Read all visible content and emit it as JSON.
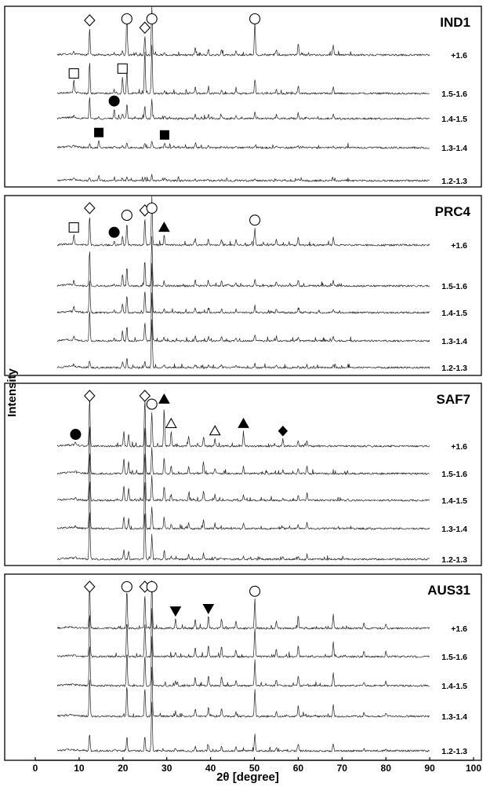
{
  "chart_data": {
    "type": "line",
    "xlabel": "2θ [degree]",
    "ylabel": "Intensity",
    "xlim": [
      0,
      100
    ],
    "x_ticks": [
      0,
      10,
      20,
      30,
      40,
      50,
      60,
      70,
      80,
      90,
      100
    ],
    "x_data_range": [
      5,
      90
    ],
    "grid": false,
    "panels": [
      {
        "name": "IND1",
        "fractions": [
          "+1.6",
          "1.5-1.6",
          "1.4-1.5",
          "1.3-1.4",
          "1.2-1.3"
        ],
        "peaks": [
          [
            12.4,
            [
              0.55,
              0.65,
              0.45,
              0.08,
              0.05
            ]
          ],
          [
            20.9,
            [
              0.85,
              0.45,
              0.3,
              0.1,
              0.07
            ]
          ],
          [
            25.0,
            [
              0.4,
              0.9,
              0.25,
              0.1,
              0.05
            ]
          ],
          [
            26.6,
            [
              1.0,
              1.0,
              0.4,
              0.15,
              0.12
            ]
          ],
          [
            8.8,
            [
              0.05,
              0.25,
              0.05,
              0.04,
              0.02
            ]
          ],
          [
            19.9,
            [
              0.1,
              0.35,
              0.1,
              0.05,
              0.03
            ]
          ],
          [
            18.0,
            [
              0.05,
              0.08,
              0.2,
              0.03,
              0.02
            ]
          ],
          [
            14.5,
            [
              0.03,
              0.03,
              0.03,
              0.15,
              0.12
            ]
          ],
          [
            29.5,
            [
              0.05,
              0.05,
              0.05,
              0.1,
              0.06
            ]
          ],
          [
            50.1,
            [
              0.7,
              0.3,
              0.15,
              0.05,
              0.03
            ]
          ],
          [
            60.0,
            [
              0.25,
              0.15,
              0.1,
              0.04,
              0.03
            ]
          ],
          [
            36.5,
            [
              0.15,
              0.12,
              0.1,
              0.05,
              0.03
            ]
          ],
          [
            39.5,
            [
              0.12,
              0.1,
              0.08,
              0.04,
              0.03
            ]
          ],
          [
            42.5,
            [
              0.12,
              0.08,
              0.06,
              0.03,
              0.02
            ]
          ],
          [
            45.8,
            [
              0.1,
              0.08,
              0.06,
              0.03,
              0.02
            ]
          ],
          [
            55.0,
            [
              0.12,
              0.1,
              0.08,
              0.03,
              0.02
            ]
          ],
          [
            68.0,
            [
              0.2,
              0.12,
              0.08,
              0.03,
              0.02
            ]
          ]
        ],
        "markers": [
          {
            "type": "open-diamond",
            "x": 12.4,
            "row": "+1.6"
          },
          {
            "type": "open-circle",
            "x": 20.9,
            "row": "+1.6"
          },
          {
            "type": "open-diamond",
            "x": 25.0,
            "row": "+1.6"
          },
          {
            "type": "open-circle",
            "x": 26.6,
            "row": "+1.6"
          },
          {
            "type": "open-circle",
            "x": 50.1,
            "row": "+1.6"
          },
          {
            "type": "open-square",
            "x": 8.8,
            "row": "1.5-1.6"
          },
          {
            "type": "open-square",
            "x": 19.9,
            "row": "1.5-1.6"
          },
          {
            "type": "filled-circle",
            "x": 18.0,
            "row": "1.4-1.5"
          },
          {
            "type": "filled-square",
            "x": 14.5,
            "row": "1.3-1.4"
          },
          {
            "type": "filled-square",
            "x": 29.5,
            "row": "1.3-1.4"
          }
        ]
      },
      {
        "name": "PRC4",
        "fractions": [
          "+1.6",
          "1.5-1.6",
          "1.4-1.5",
          "1.3-1.4",
          "1.2-1.3"
        ],
        "peaks": [
          [
            12.4,
            [
              0.6,
              0.75,
              0.7,
              0.65,
              0.15
            ]
          ],
          [
            20.9,
            [
              0.45,
              0.4,
              0.35,
              0.3,
              0.2
            ]
          ],
          [
            25.0,
            [
              0.55,
              0.5,
              0.45,
              0.4,
              0.12
            ]
          ],
          [
            26.6,
            [
              1.0,
              1.0,
              1.0,
              1.0,
              1.0
            ]
          ],
          [
            8.8,
            [
              0.2,
              0.1,
              0.1,
              0.08,
              0.05
            ]
          ],
          [
            19.9,
            [
              0.2,
              0.25,
              0.2,
              0.2,
              0.1
            ]
          ],
          [
            18.0,
            [
              0.1,
              0.05,
              0.05,
              0.05,
              0.03
            ]
          ],
          [
            29.4,
            [
              0.2,
              0.1,
              0.1,
              0.08,
              0.05
            ]
          ],
          [
            50.1,
            [
              0.35,
              0.15,
              0.15,
              0.12,
              0.1
            ]
          ],
          [
            60.0,
            [
              0.15,
              0.12,
              0.1,
              0.08,
              0.05
            ]
          ],
          [
            36.5,
            [
              0.15,
              0.12,
              0.1,
              0.1,
              0.06
            ]
          ],
          [
            39.5,
            [
              0.12,
              0.1,
              0.08,
              0.08,
              0.05
            ]
          ],
          [
            42.5,
            [
              0.12,
              0.1,
              0.08,
              0.08,
              0.05
            ]
          ],
          [
            45.8,
            [
              0.1,
              0.08,
              0.06,
              0.06,
              0.04
            ]
          ],
          [
            55.0,
            [
              0.12,
              0.1,
              0.08,
              0.08,
              0.05
            ]
          ],
          [
            68.0,
            [
              0.15,
              0.1,
              0.08,
              0.08,
              0.05
            ]
          ]
        ],
        "markers": [
          {
            "type": "open-diamond",
            "x": 12.4,
            "row": "+1.6"
          },
          {
            "type": "open-circle",
            "x": 20.9,
            "row": "+1.6"
          },
          {
            "type": "open-diamond",
            "x": 25.0,
            "row": "+1.6"
          },
          {
            "type": "open-circle",
            "x": 26.6,
            "row": "+1.6"
          },
          {
            "type": "open-square",
            "x": 8.8,
            "row": "+1.6"
          },
          {
            "type": "filled-circle",
            "x": 18.0,
            "row": "+1.6"
          },
          {
            "type": "filled-triangle-up",
            "x": 29.4,
            "row": "+1.6"
          },
          {
            "type": "open-circle",
            "x": 50.1,
            "row": "+1.6"
          }
        ]
      },
      {
        "name": "SAF7",
        "fractions": [
          "+1.6",
          "1.5-1.6",
          "1.4-1.5",
          "1.3-1.4",
          "1.2-1.3"
        ],
        "peaks": [
          [
            12.4,
            [
              1.0,
              1.0,
              1.0,
              1.0,
              1.0
            ]
          ],
          [
            25.0,
            [
              1.0,
              1.0,
              1.0,
              1.0,
              1.0
            ]
          ],
          [
            26.6,
            [
              0.7,
              0.55,
              0.5,
              0.45,
              0.5
            ]
          ],
          [
            29.4,
            [
              0.8,
              0.35,
              0.3,
              0.25,
              0.15
            ]
          ],
          [
            31.0,
            [
              0.3,
              0.15,
              0.12,
              0.1,
              0.06
            ]
          ],
          [
            9.2,
            [
              0.08,
              0.05,
              0.05,
              0.04,
              0.03
            ]
          ],
          [
            20.2,
            [
              0.3,
              0.3,
              0.3,
              0.25,
              0.2
            ]
          ],
          [
            21.3,
            [
              0.25,
              0.25,
              0.25,
              0.2,
              0.15
            ]
          ],
          [
            35.0,
            [
              0.2,
              0.15,
              0.15,
              0.12,
              0.1
            ]
          ],
          [
            38.4,
            [
              0.2,
              0.2,
              0.2,
              0.18,
              0.12
            ]
          ],
          [
            41.0,
            [
              0.15,
              0.1,
              0.1,
              0.08,
              0.06
            ]
          ],
          [
            47.5,
            [
              0.3,
              0.15,
              0.12,
              0.1,
              0.06
            ]
          ],
          [
            56.5,
            [
              0.15,
              0.08,
              0.06,
              0.05,
              0.04
            ]
          ],
          [
            60.0,
            [
              0.12,
              0.1,
              0.1,
              0.08,
              0.06
            ]
          ],
          [
            62.0,
            [
              0.12,
              0.15,
              0.15,
              0.12,
              0.08
            ]
          ]
        ],
        "markers": [
          {
            "type": "open-diamond",
            "x": 12.4,
            "row": "+1.6"
          },
          {
            "type": "open-diamond",
            "x": 25.0,
            "row": "+1.6"
          },
          {
            "type": "filled-triangle-up",
            "x": 29.4,
            "row": "+1.6"
          },
          {
            "type": "open-circle",
            "x": 26.6,
            "row": "+1.6"
          },
          {
            "type": "filled-circle",
            "x": 9.2,
            "row": "+1.6"
          },
          {
            "type": "open-triangle-up",
            "x": 31.0,
            "row": "+1.6"
          },
          {
            "type": "open-triangle-up",
            "x": 41.0,
            "row": "+1.6"
          },
          {
            "type": "filled-triangle-up",
            "x": 47.5,
            "row": "+1.6"
          },
          {
            "type": "filled-diamond",
            "x": 56.5,
            "row": "+1.6"
          }
        ]
      },
      {
        "name": "AUS31",
        "fractions": [
          "+1.6",
          "1.5-1.6",
          "1.4-1.5",
          "1.3-1.4",
          "1.2-1.3"
        ],
        "peaks": [
          [
            12.4,
            [
              0.9,
              0.9,
              0.85,
              0.8,
              0.35
            ]
          ],
          [
            20.9,
            [
              0.8,
              0.75,
              0.7,
              0.65,
              0.3
            ]
          ],
          [
            25.0,
            [
              0.7,
              0.7,
              0.65,
              0.6,
              0.3
            ]
          ],
          [
            26.6,
            [
              1.0,
              1.0,
              1.0,
              1.0,
              1.0
            ]
          ],
          [
            32.0,
            [
              0.2,
              0.1,
              0.1,
              0.1,
              0.06
            ]
          ],
          [
            39.5,
            [
              0.25,
              0.25,
              0.2,
              0.2,
              0.12
            ]
          ],
          [
            42.5,
            [
              0.2,
              0.2,
              0.2,
              0.18,
              0.1
            ]
          ],
          [
            50.1,
            [
              0.6,
              0.6,
              0.55,
              0.55,
              0.35
            ]
          ],
          [
            55.0,
            [
              0.15,
              0.15,
              0.12,
              0.12,
              0.08
            ]
          ],
          [
            60.0,
            [
              0.25,
              0.25,
              0.22,
              0.22,
              0.15
            ]
          ],
          [
            68.0,
            [
              0.3,
              0.3,
              0.28,
              0.25,
              0.15
            ]
          ],
          [
            36.5,
            [
              0.2,
              0.18,
              0.18,
              0.15,
              0.1
            ]
          ],
          [
            45.8,
            [
              0.15,
              0.12,
              0.12,
              0.1,
              0.08
            ]
          ],
          [
            75.0,
            [
              0.1,
              0.1,
              0.08,
              0.08,
              0.05
            ]
          ],
          [
            80.0,
            [
              0.1,
              0.1,
              0.08,
              0.08,
              0.05
            ]
          ]
        ],
        "markers": [
          {
            "type": "open-diamond",
            "x": 12.4,
            "row": "+1.6"
          },
          {
            "type": "open-circle",
            "x": 20.9,
            "row": "+1.6"
          },
          {
            "type": "open-diamond",
            "x": 25.0,
            "row": "+1.6"
          },
          {
            "type": "open-circle",
            "x": 26.6,
            "row": "+1.6"
          },
          {
            "type": "filled-triangle-down",
            "x": 32.0,
            "row": "+1.6"
          },
          {
            "type": "filled-triangle-down",
            "x": 39.5,
            "row": "+1.6"
          },
          {
            "type": "open-circle",
            "x": 50.1,
            "row": "+1.6"
          }
        ]
      }
    ]
  }
}
